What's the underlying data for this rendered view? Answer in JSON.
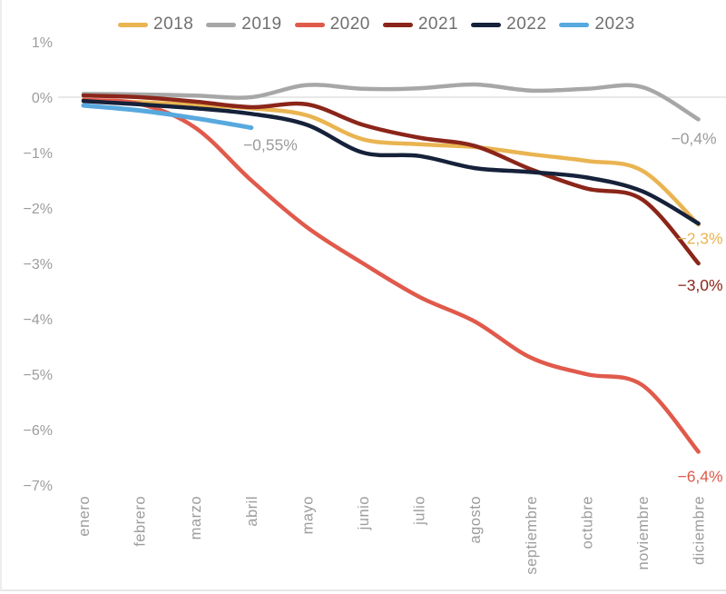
{
  "chart_data": {
    "type": "line",
    "title": "",
    "categories": [
      "enero",
      "febrero",
      "marzo",
      "abril",
      "mayo",
      "junio",
      "julio",
      "agosto",
      "septiembre",
      "octubre",
      "noviembre",
      "diciembre"
    ],
    "y_axis": {
      "ticks": [
        {
          "label": "1%",
          "value": 1
        },
        {
          "label": "0%",
          "value": 0
        },
        {
          "label": "−1%",
          "value": -1
        },
        {
          "label": "−2%",
          "value": -2
        },
        {
          "label": "−3%",
          "value": -3
        },
        {
          "label": "−4%",
          "value": -4
        },
        {
          "label": "−5%",
          "value": -5
        },
        {
          "label": "−6%",
          "value": -6
        },
        {
          "label": "−7%",
          "value": -7
        }
      ],
      "range": [
        -7.3,
        1.3
      ]
    },
    "grid": "zero-line-only",
    "legend_position": "top",
    "series": [
      {
        "name": "2018",
        "color": "#E9B451",
        "values": [
          -0.05,
          -0.09,
          -0.14,
          -0.2,
          -0.33,
          -0.76,
          -0.85,
          -0.9,
          -1.03,
          -1.15,
          -1.33,
          -2.3
        ]
      },
      {
        "name": "2019",
        "color": "#A7A7A7",
        "values": [
          0.06,
          0.05,
          0.03,
          0.0,
          0.22,
          0.15,
          0.16,
          0.23,
          0.12,
          0.15,
          0.18,
          -0.4
        ]
      },
      {
        "name": "2020",
        "color": "#E05A4B",
        "values": [
          -0.05,
          -0.12,
          -0.55,
          -1.5,
          -2.35,
          -3.0,
          -3.6,
          -4.05,
          -4.7,
          -5.0,
          -5.2,
          -6.4
        ]
      },
      {
        "name": "2021",
        "color": "#8B251A",
        "values": [
          0.03,
          0.0,
          -0.08,
          -0.18,
          -0.13,
          -0.5,
          -0.73,
          -0.88,
          -1.3,
          -1.65,
          -1.85,
          -3.0
        ]
      },
      {
        "name": "2022",
        "color": "#16213A",
        "values": [
          -0.07,
          -0.13,
          -0.2,
          -0.3,
          -0.5,
          -1.0,
          -1.06,
          -1.28,
          -1.35,
          -1.45,
          -1.7,
          -2.28
        ]
      },
      {
        "name": "2023",
        "color": "#57A9DE",
        "values": [
          -0.15,
          -0.24,
          -0.38,
          -0.55,
          null,
          null,
          null,
          null,
          null,
          null,
          null,
          null
        ]
      }
    ],
    "annotations": [
      {
        "series": "2023",
        "text": "−0,55%",
        "color": "#9C9C9C"
      },
      {
        "series": "2019",
        "text": "−0,4%",
        "color": "#9C9C9C"
      },
      {
        "series": "2018",
        "text": "−2,3%",
        "color": "#E9B451"
      },
      {
        "series": "2021",
        "text": "−3,0%",
        "color": "#8B251A"
      },
      {
        "series": "2020",
        "text": "−6,4%",
        "color": "#E05A4B"
      }
    ]
  },
  "style": {
    "axis_text_color": "#9C9C9C",
    "legend_text_color": "#6F6F6F",
    "zero_line_color": "#DBDBDB"
  }
}
